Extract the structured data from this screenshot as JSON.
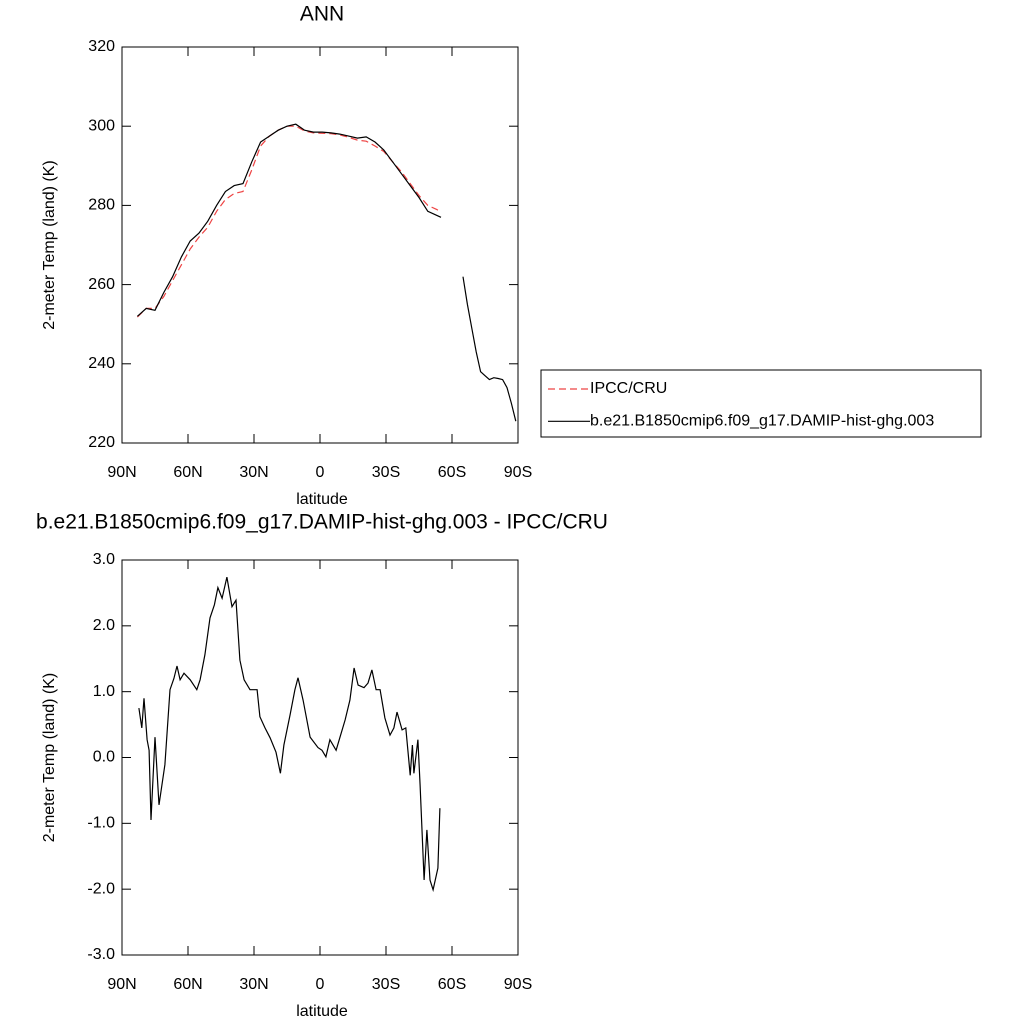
{
  "chart_data": [
    {
      "type": "line",
      "title": "ANN",
      "xlabel": "latitude",
      "ylabel": "2-meter Temp (land) (K)",
      "x": [
        83,
        79,
        75,
        71,
        67,
        63,
        59,
        55,
        51,
        47,
        43,
        39,
        35,
        31,
        27,
        23,
        19,
        15,
        11,
        7,
        3,
        -1,
        -5,
        -9,
        -13,
        -17,
        -21,
        -25,
        -29,
        -33,
        -37,
        -41,
        -45,
        -49,
        -53,
        -55,
        -59,
        -63,
        -65,
        -67,
        -69,
        -71,
        -73,
        -75,
        -77,
        -79,
        -81,
        -83,
        -85,
        -87,
        -89
      ],
      "series": [
        {
          "name": "IPCC/CRU",
          "color": "#ee4444",
          "dashed": true,
          "values": [
            251.8,
            254,
            254,
            257,
            261,
            265,
            269,
            272,
            274.5,
            278.5,
            281.5,
            283,
            283.5,
            289,
            295,
            297.5,
            299,
            300,
            300,
            298.8,
            298.3,
            298.2,
            298.1,
            297.8,
            297.2,
            296.5,
            296.2,
            295,
            293.6,
            291,
            288.5,
            285.5,
            282.5,
            280,
            279,
            278.3,
            null,
            null,
            null,
            null,
            null,
            null,
            null,
            null,
            null,
            null,
            null,
            null,
            null,
            null,
            null
          ]
        },
        {
          "name": "b.e21.B1850cmip6.f09_g17.DAMIP-hist-ghg.003",
          "color": "#000000",
          "dashed": false,
          "values": [
            252,
            254,
            253.5,
            258,
            262,
            267,
            271,
            273,
            276,
            280,
            283.5,
            285,
            285.5,
            291,
            296,
            297.5,
            299,
            300,
            300.5,
            299,
            298.5,
            298.5,
            298.3,
            298,
            297.5,
            297,
            297.3,
            296,
            294,
            291,
            288,
            285,
            282,
            278.5,
            277.5,
            277,
            null,
            null,
            262,
            255,
            249,
            243,
            238,
            237,
            236,
            236.5,
            236.3,
            236,
            234,
            230,
            225.5
          ]
        }
      ],
      "xlim": [
        90,
        -90
      ],
      "xticks": [
        {
          "value": 90,
          "label": "90N"
        },
        {
          "value": 60,
          "label": "60N"
        },
        {
          "value": 30,
          "label": "30N"
        },
        0,
        {
          "value": -30,
          "label": "30S"
        },
        {
          "value": -60,
          "label": "60S"
        },
        {
          "value": -90,
          "label": "90S"
        }
      ],
      "ylim": [
        220,
        320
      ],
      "yticks": [
        220,
        240,
        260,
        280,
        300,
        320
      ],
      "legend": "right"
    },
    {
      "type": "line",
      "title": "b.e21.B1850cmip6.f09_g17.DAMIP-hist-ghg.003 - IPCC/CRU",
      "xlabel": "latitude",
      "ylabel": "2-meter Temp (land) (K)",
      "x": [
        82.3,
        81,
        80,
        78.6,
        77.7,
        76.8,
        75,
        73.2,
        70.5,
        68.2,
        66.4,
        65,
        63.6,
        61.8,
        59,
        56,
        54.5,
        52.3,
        50,
        48,
        46.4,
        44.5,
        42.3,
        40,
        38.2,
        36.4,
        34.5,
        31.8,
        28.6,
        27.3,
        25,
        22.7,
        20,
        18,
        16.4,
        13.6,
        11.4,
        10,
        7.7,
        4.5,
        0.9,
        -0.9,
        -2.7,
        -4.5,
        -7.3,
        -9,
        -11.4,
        -13.6,
        -15.5,
        -17.3,
        -20,
        -21.8,
        -23.6,
        -25.5,
        -27.3,
        -29.5,
        -31.8,
        -33.6,
        -35,
        -37.3,
        -39,
        -41,
        -42,
        -42.7,
        -44.5,
        -45.5,
        -47.3,
        -48.6,
        -50,
        -51.4,
        -53.6,
        -54.5
      ],
      "series": [
        {
          "name": "b.e21.B1850cmip6.f09_g17.DAMIP-hist-ghg.003 - IPCC/CRU",
          "color": "#000000",
          "dashed": false,
          "values": [
            0.75,
            0.45,
            0.9,
            0.27,
            0.11,
            -0.95,
            0.31,
            -0.72,
            -0.11,
            1.03,
            1.2,
            1.39,
            1.18,
            1.28,
            1.18,
            1.03,
            1.18,
            1.56,
            2.12,
            2.32,
            2.58,
            2.42,
            2.74,
            2.29,
            2.39,
            1.48,
            1.18,
            1.03,
            1.03,
            0.62,
            0.45,
            0.3,
            0.08,
            -0.24,
            0.19,
            0.65,
            1.03,
            1.21,
            0.87,
            0.31,
            0.15,
            0.11,
            0.01,
            0.27,
            0.11,
            0.3,
            0.57,
            0.87,
            1.36,
            1.1,
            1.06,
            1.13,
            1.33,
            1.03,
            1.03,
            0.6,
            0.34,
            0.45,
            0.69,
            0.42,
            0.45,
            -0.27,
            0.19,
            -0.24,
            0.27,
            -0.42,
            -1.86,
            -1.1,
            -1.86,
            -2.01,
            -1.68,
            -0.77
          ]
        }
      ],
      "xlim": [
        90,
        -90
      ],
      "xticks": [
        {
          "value": 90,
          "label": "90N"
        },
        {
          "value": 60,
          "label": "60N"
        },
        {
          "value": 30,
          "label": "30N"
        },
        0,
        {
          "value": -30,
          "label": "30S"
        },
        {
          "value": -60,
          "label": "60S"
        },
        {
          "value": -90,
          "label": "90S"
        }
      ],
      "ylim": [
        -3,
        3
      ],
      "yticks": [
        {
          "value": -3,
          "label": "-3.0"
        },
        {
          "value": -2,
          "label": "-2.0"
        },
        {
          "value": -1,
          "label": "-1.0"
        },
        {
          "value": 0,
          "label": "0.0"
        },
        {
          "value": 1,
          "label": "1.0"
        },
        {
          "value": 2,
          "label": "2.0"
        },
        {
          "value": 3,
          "label": "3.0"
        }
      ]
    }
  ]
}
